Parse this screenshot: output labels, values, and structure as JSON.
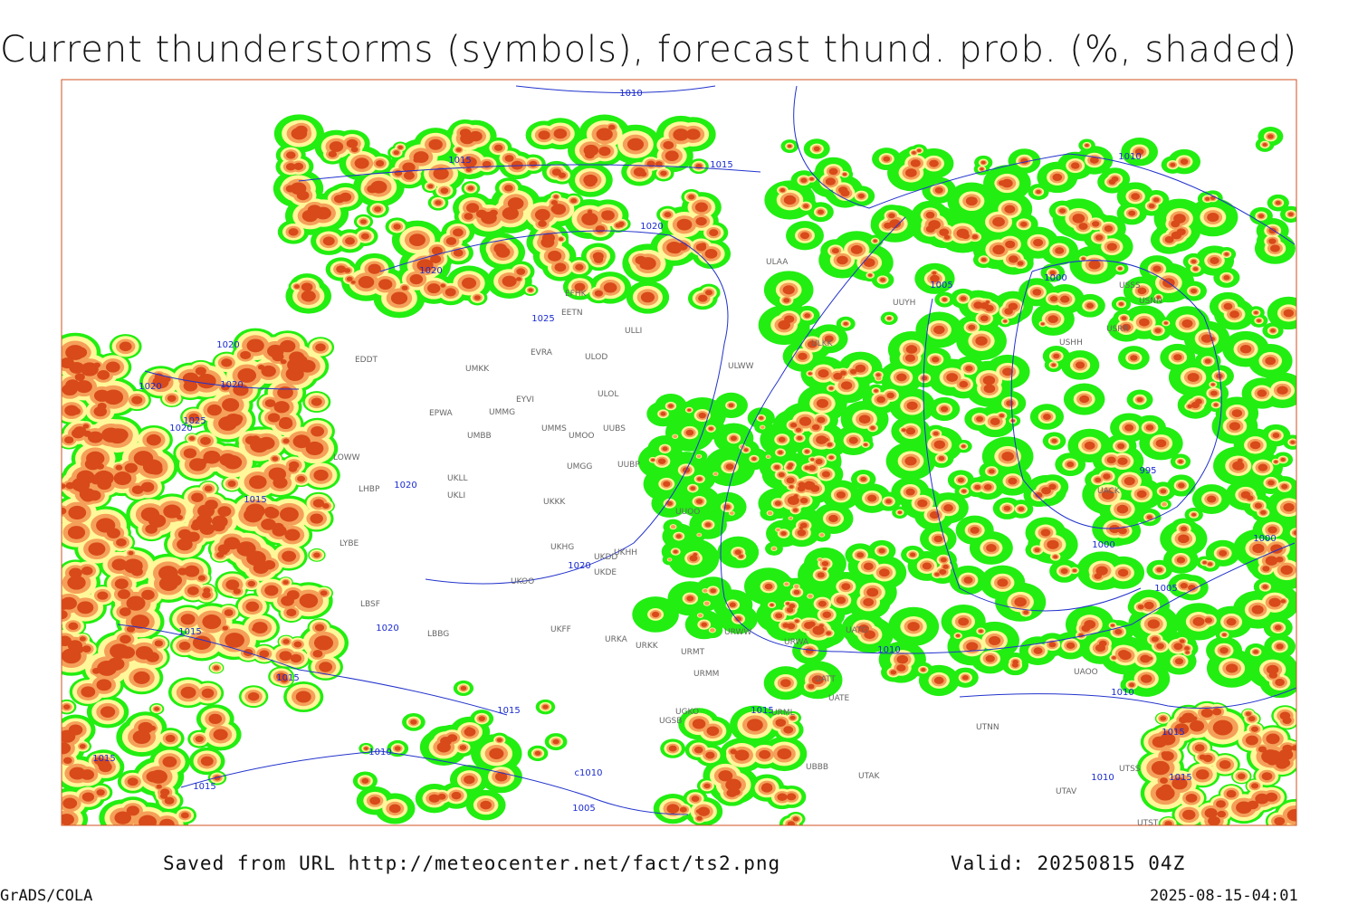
{
  "header": {
    "title": "Current thunderstorms (symbols), forecast thund. prob. (%, shaded)"
  },
  "footer": {
    "source": "Saved from URL http://meteocenter.net/fact/ts2.png",
    "valid": "Valid: 20250815 04Z",
    "software": "GrADS/COLA",
    "timestamp": "2025-08-15-04:01"
  },
  "isobar_labels": [
    "1010",
    "1015",
    "1015",
    "1020",
    "1020",
    "1025",
    "1020",
    "1020",
    "1020",
    "1025",
    "1020",
    "1015",
    "1020",
    "1015",
    "1015",
    "1020",
    "1020",
    "1015",
    "1015",
    "1010",
    "1015",
    "c1010",
    "1005",
    "1015",
    "1010",
    "1005",
    "1000",
    "995",
    "1000",
    "1000",
    "1005",
    "1010",
    "1010",
    "1015",
    "1015",
    "1010"
  ],
  "station_labels": [
    "ULAA",
    "EFHK",
    "EETN",
    "ULLI",
    "EVRA",
    "ULOD",
    "UMKK",
    "EYVI",
    "ULOL",
    "ULWW",
    "EPWA",
    "UMMG",
    "UMMS",
    "UMOO",
    "UUBS",
    "UMBB",
    "UMGG",
    "UUBP",
    "LOWW",
    "LHBP",
    "UKLI",
    "UKLL",
    "UKKK",
    "UUOO",
    "LYBE",
    "UKHG",
    "UKDD",
    "UKHH",
    "UKOO",
    "UKDE",
    "LBSF",
    "LBBG",
    "UKFF",
    "URKA",
    "URKK",
    "URMT",
    "URMM",
    "URWW",
    "UGSB",
    "UGKO",
    "UBBB",
    "UTAK",
    "URML",
    "UATE",
    "UATT",
    "URWA",
    "UATG",
    "ULKK",
    "UUYH",
    "USHH",
    "USRR",
    "USNN",
    "USSS",
    "UACK",
    "UTNN",
    "UAOO",
    "UTSS",
    "UTAV",
    "UTST",
    "EDDT"
  ]
}
